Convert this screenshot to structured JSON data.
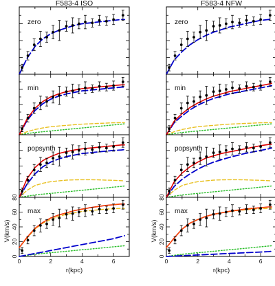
{
  "colors": {
    "data": "#000000",
    "halo": "#0000cc",
    "total": "#e00000",
    "stars": "#e8c020",
    "gas": "#30c030",
    "max_total": "#ff6600"
  },
  "chart_data": {
    "type": "line",
    "figure": "rotation curve fits, grid of 2 columns x 4 rows",
    "columns": [
      "F583-4 ISO",
      "F583-4 NFW"
    ],
    "rows": [
      "zero",
      "min",
      "popsynth",
      "max"
    ],
    "xlabel": "r(kpc)",
    "ylabel": "V(km/s)",
    "xlim": [
      0,
      7
    ],
    "ylim": [
      0,
      80
    ],
    "xticks": [
      0,
      2,
      4,
      6
    ],
    "yticks": [
      0,
      20,
      40,
      60,
      80
    ],
    "ytick_labels_shown_on": "max",
    "observed": {
      "name": "data",
      "r": [
        0.18,
        0.55,
        0.95,
        1.35,
        1.75,
        2.15,
        2.55,
        3.0,
        3.4,
        3.8,
        4.2,
        4.65,
        5.1,
        5.55,
        6.0,
        6.6
      ],
      "v": [
        8,
        22,
        35,
        42,
        44,
        50,
        52,
        57,
        58,
        60,
        62,
        61,
        64,
        63,
        65,
        70
      ],
      "err": [
        4,
        5,
        7,
        9,
        6,
        8,
        12,
        6,
        9,
        6,
        8,
        5,
        6,
        5,
        6,
        6
      ]
    },
    "panels": [
      {
        "column": "F583-4 ISO",
        "row": "zero",
        "series": [
          {
            "role": "halo",
            "r": [
              0,
              0.5,
              1,
              1.5,
              2,
              2.5,
              3,
              3.5,
              4,
              4.5,
              5,
              5.5,
              6,
              6.5,
              6.7
            ],
            "v": [
              0,
              19,
              33,
              42,
              48,
              52,
              55,
              58,
              60,
              61,
              62,
              63,
              64,
              65,
              65
            ]
          }
        ]
      },
      {
        "column": "F583-4 ISO",
        "row": "min",
        "series": [
          {
            "role": "total",
            "r": [
              0,
              0.5,
              1,
              1.5,
              2,
              2.5,
              3,
              3.5,
              4,
              4.5,
              5,
              5.5,
              6,
              6.5,
              6.7
            ],
            "v": [
              0,
              21,
              35,
              44,
              50,
              54,
              57,
              59,
              61,
              62,
              63,
              64,
              65,
              66,
              66
            ]
          },
          {
            "role": "halo",
            "r": [
              0,
              0.5,
              1,
              1.5,
              2,
              2.5,
              3,
              3.5,
              4,
              4.5,
              5,
              5.5,
              6,
              6.5,
              6.7
            ],
            "v": [
              0,
              19,
              32,
              41,
              47,
              51,
              54,
              56,
              58,
              59,
              60,
              61,
              62,
              63,
              63
            ]
          },
          {
            "role": "stars",
            "r": [
              0,
              0.5,
              1,
              1.5,
              2,
              2.5,
              3,
              3.5,
              4,
              4.5,
              5,
              5.5,
              6,
              6.5,
              6.7
            ],
            "v": [
              0,
              4,
              7,
              9,
              10.5,
              11.5,
              12.5,
              13.3,
              14,
              14.5,
              15,
              15.4,
              15.8,
              16,
              16
            ]
          },
          {
            "role": "gas",
            "r": [
              0,
              0.5,
              1,
              1.5,
              2,
              2.5,
              3,
              3.5,
              4,
              4.5,
              5,
              5.5,
              6,
              6.5,
              6.7
            ],
            "v": [
              0,
              1.5,
              3,
              4,
              5,
              6,
              7,
              8,
              9,
              10,
              11,
              12,
              13,
              14,
              14.5
            ]
          }
        ]
      },
      {
        "column": "F583-4 ISO",
        "row": "popsynth",
        "series": [
          {
            "role": "total",
            "r": [
              0,
              0.5,
              1,
              1.5,
              2,
              2.5,
              3,
              3.5,
              4,
              4.5,
              5,
              5.5,
              6,
              6.5,
              6.7
            ],
            "v": [
              0,
              24,
              38,
              47,
              52,
              56,
              58.5,
              60.5,
              62,
              63,
              64,
              65,
              66,
              67,
              67
            ]
          },
          {
            "role": "halo",
            "r": [
              0,
              0.5,
              1,
              1.5,
              2,
              2.5,
              3,
              3.5,
              4,
              4.5,
              5,
              5.5,
              6,
              6.5,
              6.7
            ],
            "v": [
              0,
              17,
              30,
              39,
              45,
              49,
              52,
              54,
              56,
              57,
              58,
              59,
              60,
              60.5,
              61
            ]
          },
          {
            "role": "stars",
            "r": [
              0,
              0.5,
              1,
              1.5,
              2,
              2.5,
              3,
              3.5,
              4,
              4.5,
              5,
              5.5,
              6,
              6.5,
              6.7
            ],
            "v": [
              0,
              9,
              15,
              18,
              20,
              21,
              22,
              22.3,
              22.5,
              22.5,
              22.3,
              22,
              21.7,
              21.3,
              21
            ]
          },
          {
            "role": "gas",
            "r": [
              0,
              0.5,
              1,
              1.5,
              2,
              2.5,
              3,
              3.5,
              4,
              4.5,
              5,
              5.5,
              6,
              6.5,
              6.7
            ],
            "v": [
              0,
              1.5,
              3,
              4,
              5,
              6,
              7,
              8,
              9,
              10,
              11,
              12,
              13,
              14,
              14.5
            ]
          }
        ]
      },
      {
        "column": "F583-4 ISO",
        "row": "max",
        "series": [
          {
            "role": "total",
            "r": [
              0,
              0.5,
              1,
              1.5,
              2,
              2.5,
              3,
              3.5,
              4,
              4.5,
              5,
              5.5,
              6,
              6.5,
              6.7
            ],
            "v": [
              12,
              26,
              38,
              46,
              52,
              56,
              59,
              62,
              64,
              66,
              67.5,
              69,
              70,
              71,
              71
            ]
          },
          {
            "role": "stars",
            "r": [
              0,
              0.5,
              1,
              1.5,
              2,
              2.5,
              3,
              3.5,
              4,
              4.5,
              5,
              5.5,
              6,
              6.5,
              6.7
            ],
            "v": [
              12,
              25,
              37,
              45,
              50,
              54,
              57,
              59,
              61,
              62,
              63,
              64,
              64.5,
              65,
              65
            ]
          },
          {
            "role": "halo",
            "r": [
              0,
              0.5,
              1,
              1.5,
              2,
              2.5,
              3,
              3.5,
              4,
              4.5,
              5,
              5.5,
              6,
              6.5,
              6.7
            ],
            "v": [
              0,
              2,
              4,
              6,
              8,
              10,
              12,
              14,
              16,
              18,
              20,
              22,
              24,
              27,
              28
            ]
          },
          {
            "role": "gas",
            "r": [
              0,
              0.5,
              1,
              1.5,
              2,
              2.5,
              3,
              3.5,
              4,
              4.5,
              5,
              5.5,
              6,
              6.5,
              6.7
            ],
            "v": [
              0,
              1.5,
              3,
              4,
              5,
              6,
              7,
              8,
              9,
              10,
              11,
              12,
              13,
              14,
              14.5
            ]
          }
        ]
      },
      {
        "column": "F583-4 NFW",
        "row": "zero",
        "series": [
          {
            "role": "halo",
            "r": [
              0,
              0.5,
              1,
              1.5,
              2,
              2.5,
              3,
              3.5,
              4,
              4.5,
              5,
              5.5,
              6,
              6.5,
              6.7
            ],
            "v": [
              0,
              17,
              27,
              35,
              41,
              46,
              50,
              53,
              56,
              58,
              60,
              62,
              64,
              65,
              66
            ]
          }
        ]
      },
      {
        "column": "F583-4 NFW",
        "row": "min",
        "series": [
          {
            "role": "total",
            "r": [
              0,
              0.5,
              1,
              1.5,
              2,
              2.5,
              3,
              3.5,
              4,
              4.5,
              5,
              5.5,
              6,
              6.5,
              6.7
            ],
            "v": [
              0,
              18,
              28,
              36,
              42,
              47,
              51,
              54,
              57,
              59,
              61,
              63,
              65,
              67,
              68
            ]
          },
          {
            "role": "halo",
            "r": [
              0,
              0.5,
              1,
              1.5,
              2,
              2.5,
              3,
              3.5,
              4,
              4.5,
              5,
              5.5,
              6,
              6.5,
              6.7
            ],
            "v": [
              0,
              16,
              25,
              33,
              39,
              44,
              48,
              51,
              54,
              56,
              58,
              60,
              62,
              64,
              65
            ]
          },
          {
            "role": "stars",
            "r": [
              0,
              0.5,
              1,
              1.5,
              2,
              2.5,
              3,
              3.5,
              4,
              4.5,
              5,
              5.5,
              6,
              6.5,
              6.7
            ],
            "v": [
              0,
              4,
              7,
              9,
              10.5,
              11.5,
              12.5,
              13.3,
              14,
              14.5,
              15,
              15.4,
              15.8,
              16,
              16
            ]
          },
          {
            "role": "gas",
            "r": [
              0,
              0.5,
              1,
              1.5,
              2,
              2.5,
              3,
              3.5,
              4,
              4.5,
              5,
              5.5,
              6,
              6.5,
              6.7
            ],
            "v": [
              0,
              1.5,
              3,
              4,
              5,
              6,
              7,
              8,
              9,
              10,
              11,
              12,
              13,
              14,
              14.5
            ]
          }
        ]
      },
      {
        "column": "F583-4 NFW",
        "row": "popsynth",
        "series": [
          {
            "role": "total",
            "r": [
              0,
              0.5,
              1,
              1.5,
              2,
              2.5,
              3,
              3.5,
              4,
              4.5,
              5,
              5.5,
              6,
              6.5,
              6.7
            ],
            "v": [
              0,
              20,
              31,
              39,
              45,
              50,
              53,
              56,
              58,
              60,
              62,
              64,
              66,
              67.5,
              68
            ]
          },
          {
            "role": "halo",
            "r": [
              0,
              0.5,
              1,
              1.5,
              2,
              2.5,
              3,
              3.5,
              4,
              4.5,
              5,
              5.5,
              6,
              6.5,
              6.7
            ],
            "v": [
              0,
              14,
              23,
              30,
              36,
              41,
              45,
              48,
              51,
              53.5,
              56,
              58,
              60,
              62,
              63
            ]
          },
          {
            "role": "stars",
            "r": [
              0,
              0.5,
              1,
              1.5,
              2,
              2.5,
              3,
              3.5,
              4,
              4.5,
              5,
              5.5,
              6,
              6.5,
              6.7
            ],
            "v": [
              0,
              9,
              15,
              18,
              20,
              21,
              22,
              22.3,
              22.5,
              22.5,
              22.3,
              22,
              21.7,
              21.3,
              21
            ]
          },
          {
            "role": "gas",
            "r": [
              0,
              0.5,
              1,
              1.5,
              2,
              2.5,
              3,
              3.5,
              4,
              4.5,
              5,
              5.5,
              6,
              6.5,
              6.7
            ],
            "v": [
              0,
              1.5,
              3,
              4,
              5,
              6,
              7,
              8,
              9,
              10,
              11,
              12,
              13,
              14,
              14.5
            ]
          }
        ]
      },
      {
        "column": "F583-4 NFW",
        "row": "max",
        "series": [
          {
            "role": "total",
            "r": [
              0,
              0.5,
              1,
              1.5,
              2,
              2.5,
              3,
              3.5,
              4,
              4.5,
              5,
              5.5,
              6,
              6.5,
              6.7
            ],
            "v": [
              12,
              25,
              37,
              45,
              50,
              54,
              57,
              59,
              61,
              62.5,
              64,
              65,
              66,
              67,
              67
            ]
          },
          {
            "role": "stars",
            "r": [
              0,
              0.5,
              1,
              1.5,
              2,
              2.5,
              3,
              3.5,
              4,
              4.5,
              5,
              5.5,
              6,
              6.5,
              6.7
            ],
            "v": [
              12,
              25,
              37,
              45,
              50,
              54,
              57,
              59,
              60.5,
              62,
              63,
              64,
              64.5,
              65,
              65
            ]
          },
          {
            "role": "halo",
            "r": [
              0,
              0.5,
              1,
              1.5,
              2,
              2.5,
              3,
              3.5,
              4,
              4.5,
              5,
              5.5,
              6,
              6.5,
              6.7
            ],
            "v": [
              0,
              0.5,
              1,
              1.5,
              2,
              2.5,
              3,
              3.5,
              4,
              4.5,
              5,
              5.5,
              6,
              6.5,
              7
            ]
          },
          {
            "role": "gas",
            "r": [
              0,
              0.5,
              1,
              1.5,
              2,
              2.5,
              3,
              3.5,
              4,
              4.5,
              5,
              5.5,
              6,
              6.5,
              6.7
            ],
            "v": [
              0,
              1.5,
              3,
              4,
              5,
              6,
              7,
              8,
              9,
              10,
              11,
              12,
              13,
              14,
              14.5
            ]
          }
        ]
      }
    ]
  }
}
